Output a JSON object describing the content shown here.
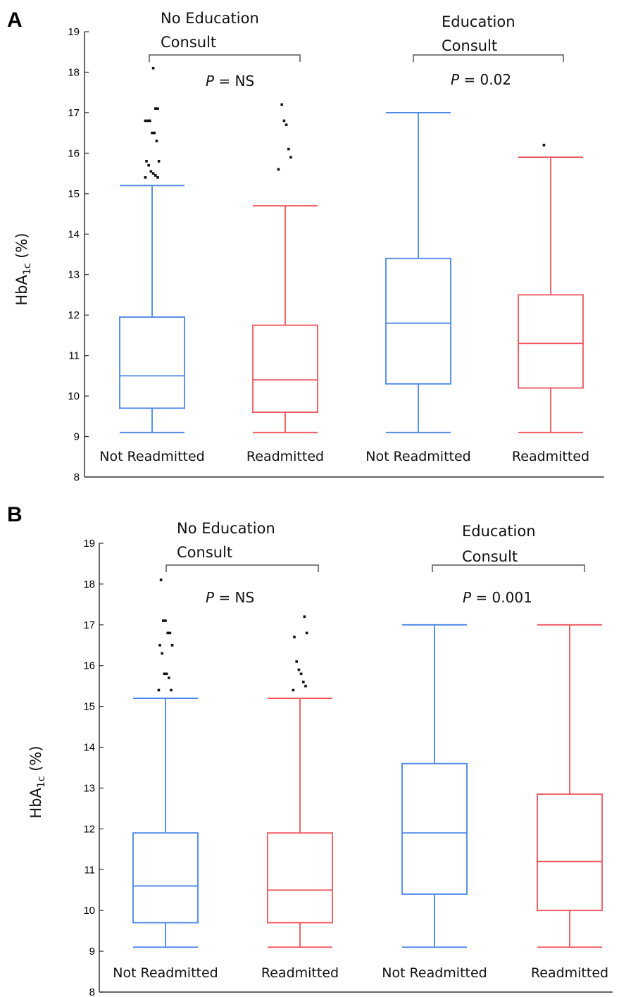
{
  "chart_data": [
    {
      "panel": "A",
      "type": "box",
      "ylabel": {
        "main": "HbA",
        "sub": "1c",
        "unit": "(%)"
      },
      "ylim": [
        8,
        19
      ],
      "yticks": [
        "19",
        "18",
        "17",
        "16",
        "15",
        "14",
        "13",
        "12",
        "11",
        "10",
        "9",
        "8"
      ],
      "groups": [
        {
          "label_lines": [
            "No Education",
            "Consult"
          ],
          "p_label": "P",
          "p_value": "= NS"
        },
        {
          "label_lines": [
            "Education",
            "Consult"
          ],
          "p_label": "P",
          "p_value": "= 0.02"
        }
      ],
      "boxes": [
        {
          "category": "Not Readmitted",
          "group": 0,
          "color": "#4a86e8",
          "min": 9.1,
          "q1": 9.7,
          "median": 10.5,
          "q3": 11.95,
          "max": 15.2,
          "outliers": [
            15.4,
            15.4,
            15.45,
            15.5,
            15.55,
            15.7,
            15.8,
            15.8,
            16.3,
            16.5,
            16.5,
            16.8,
            16.8,
            16.8,
            17.1,
            17.1,
            18.1
          ]
        },
        {
          "category": "Readmitted",
          "group": 0,
          "color": "#f0545c",
          "min": 9.1,
          "q1": 9.6,
          "median": 10.4,
          "q3": 11.75,
          "max": 14.7,
          "outliers": [
            15.6,
            15.9,
            16.1,
            16.7,
            16.8,
            17.2
          ]
        },
        {
          "category": "Not Readmitted",
          "group": 1,
          "color": "#4a86e8",
          "min": 9.1,
          "q1": 10.3,
          "median": 11.8,
          "q3": 13.4,
          "max": 17.0,
          "outliers": []
        },
        {
          "category": "Readmitted",
          "group": 1,
          "color": "#f0545c",
          "min": 9.1,
          "q1": 10.2,
          "median": 11.3,
          "q3": 12.5,
          "max": 15.9,
          "outliers": [
            16.2
          ]
        }
      ]
    },
    {
      "panel": "B",
      "type": "box",
      "ylabel": {
        "main": "HbA",
        "sub": "1c",
        "unit": "(%)"
      },
      "ylim": [
        8,
        19
      ],
      "yticks": [
        "19",
        "18",
        "17",
        "16",
        "15",
        "14",
        "13",
        "12",
        "11",
        "10",
        "9",
        "8"
      ],
      "groups": [
        {
          "label_lines": [
            "No Education",
            "Consult"
          ],
          "p_label": "P",
          "p_value": "= NS"
        },
        {
          "label_lines": [
            "Education",
            "Consult"
          ],
          "p_label": "P",
          "p_value": "= 0.001"
        }
      ],
      "boxes": [
        {
          "category": "Not Readmitted",
          "group": 0,
          "color": "#4a86e8",
          "min": 9.1,
          "q1": 9.7,
          "median": 10.6,
          "q3": 11.9,
          "max": 15.2,
          "outliers": [
            15.4,
            15.4,
            15.7,
            15.8,
            15.8,
            16.3,
            16.5,
            16.5,
            16.8,
            16.8,
            17.1,
            17.1,
            18.1
          ]
        },
        {
          "category": "Readmitted",
          "group": 0,
          "color": "#f0545c",
          "min": 9.1,
          "q1": 9.7,
          "median": 10.5,
          "q3": 11.9,
          "max": 15.2,
          "outliers": [
            15.4,
            15.5,
            15.6,
            15.8,
            15.9,
            16.1,
            16.7,
            16.8,
            17.2
          ]
        },
        {
          "category": "Not Readmitted",
          "group": 1,
          "color": "#4a86e8",
          "min": 9.1,
          "q1": 10.4,
          "median": 11.9,
          "q3": 13.6,
          "max": 17.0,
          "outliers": []
        },
        {
          "category": "Readmitted",
          "group": 1,
          "color": "#f0545c",
          "min": 9.1,
          "q1": 10.0,
          "median": 11.2,
          "q3": 12.85,
          "max": 17.0,
          "outliers": []
        }
      ]
    }
  ]
}
